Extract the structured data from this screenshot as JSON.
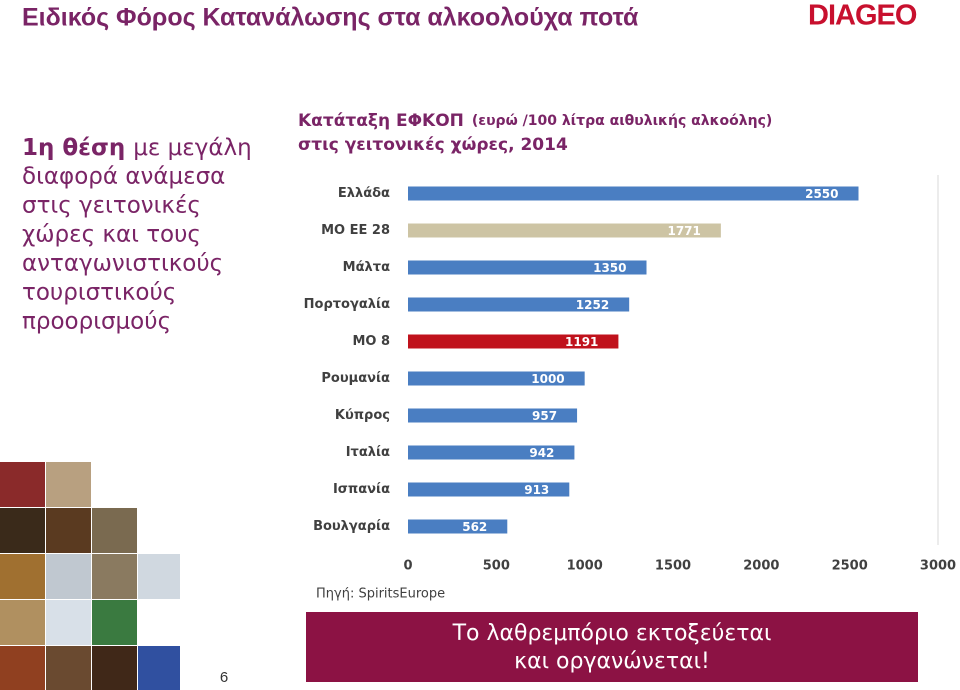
{
  "slide": {
    "title": "Ειδικός Φόρος Κατανάλωσης στα αλκοολούχα ποτά",
    "logo": "DIAGEO",
    "lead_bold": "1η θέση",
    "lead_lines": [
      "με μεγάλη",
      "διαφορά ανάμεσα",
      "στις γειτονικές",
      "χώρες και τους",
      "ανταγωνιστικούς",
      "τουριστικούς",
      "προορισμούς"
    ],
    "page_number": "6",
    "source": "Πηγή: SpiritsEurope",
    "banner": [
      "Το λαθρεμπόριο εκτοξεύεται",
      "και οργανώνεται!"
    ]
  },
  "chart_data": {
    "type": "hbar",
    "title": "Κατάταξη ΕΦΚΟΠ",
    "unit": "(ευρώ /100 λίτρα αιθυλικής αλκοόλης)",
    "title_line2": "στις γειτονικές χώρες, 2014",
    "categories": [
      "Ελλάδα",
      "ΜΟ ΕΕ 28",
      "Μάλτα",
      "Πορτογαλία",
      "ΜΟ 8",
      "Ρουμανία",
      "Κύπρος",
      "Ιταλία",
      "Ισπανία",
      "Βουλγαρία"
    ],
    "values": [
      2550,
      1771,
      1350,
      1252,
      1191,
      1000,
      957,
      942,
      913,
      562
    ],
    "colors": [
      "#4a7ec2",
      "#cdc4a4",
      "#4a7ec2",
      "#4a7ec2",
      "#c0121c",
      "#4a7ec2",
      "#4a7ec2",
      "#4a7ec2",
      "#4a7ec2",
      "#4a7ec2"
    ],
    "xlim": [
      0,
      3000
    ],
    "xticks": [
      0,
      500,
      1000,
      1500,
      2000,
      2500,
      3000
    ],
    "grid": false
  }
}
